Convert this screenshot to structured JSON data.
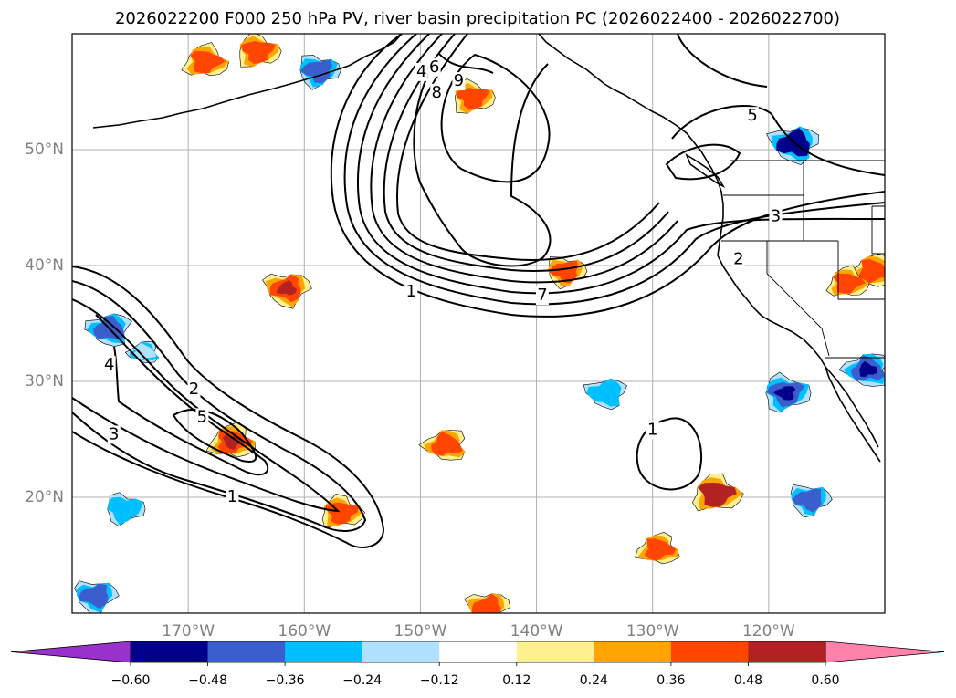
{
  "chart_data": {
    "type": "map",
    "title": "2026022200 F000 250 hPa PV, river basin precipitation PC (2026022400 - 2026022700)",
    "projection": "equirectangular",
    "lon_range": [
      -180,
      -110
    ],
    "lat_range": [
      10,
      60
    ],
    "x_ticks": [
      -170,
      -160,
      -150,
      -140,
      -130,
      -120
    ],
    "x_tick_labels": [
      "170°W",
      "160°W",
      "150°W",
      "140°W",
      "130°W",
      "120°W"
    ],
    "y_ticks": [
      20,
      30,
      40,
      50
    ],
    "y_tick_labels": [
      "20°N",
      "30°N",
      "40°N",
      "50°N"
    ],
    "grid": true,
    "colorbar": {
      "levels": [
        -0.6,
        -0.48,
        -0.36,
        -0.24,
        -0.12,
        0.12,
        0.24,
        0.36,
        0.48,
        0.6
      ],
      "labels": [
        "−0.60",
        "−0.48",
        "−0.36",
        "−0.24",
        "−0.12",
        "0.12",
        "0.24",
        "0.36",
        "0.48",
        "0.60"
      ],
      "colors": [
        "#9932cc",
        "#00008b",
        "#3a5fcd",
        "#00bfff",
        "#b0e2ff",
        "#ffffff",
        "#fff08f",
        "#ffa500",
        "#ff4500",
        "#b22222",
        "#ff82ab"
      ],
      "extend": "both"
    },
    "pv_contours": {
      "field": "250 hPa PV",
      "color": "#000000",
      "contour_labels": [
        {
          "value": "1",
          "lon": -150.8,
          "lat": 37.7
        },
        {
          "value": "7",
          "lon": -139.5,
          "lat": 37.4
        },
        {
          "value": "4",
          "lon": -149.9,
          "lat": 56.7
        },
        {
          "value": "6",
          "lon": -148.8,
          "lat": 57.1
        },
        {
          "value": "8",
          "lon": -148.6,
          "lat": 54.9
        },
        {
          "value": "9",
          "lon": -146.7,
          "lat": 55.9
        },
        {
          "value": "5",
          "lon": -121.4,
          "lat": 52.9
        },
        {
          "value": "3",
          "lon": -119.4,
          "lat": 44.2
        },
        {
          "value": "2",
          "lon": -122.6,
          "lat": 40.5
        },
        {
          "value": "1",
          "lon": -130.0,
          "lat": 25.8
        },
        {
          "value": "4",
          "lon": -176.8,
          "lat": 31.4
        },
        {
          "value": "2",
          "lon": -169.5,
          "lat": 29.3
        },
        {
          "value": "5",
          "lon": -168.8,
          "lat": 26.9
        },
        {
          "value": "3",
          "lon": -176.4,
          "lat": 25.4
        },
        {
          "value": "1",
          "lon": -166.2,
          "lat": 20.0
        }
      ]
    },
    "precip_pc_blobs": [
      {
        "lon": -168.5,
        "lat": 57.6,
        "value": 0.42
      },
      {
        "lon": -164.0,
        "lat": 58.5,
        "value": 0.42
      },
      {
        "lon": -158.8,
        "lat": 56.8,
        "value": -0.4
      },
      {
        "lon": -161.5,
        "lat": 38.0,
        "value": 0.45
      },
      {
        "lon": -176.8,
        "lat": 34.5,
        "value": -0.42
      },
      {
        "lon": -173.8,
        "lat": 32.5,
        "value": -0.2
      },
      {
        "lon": -166.2,
        "lat": 24.8,
        "value": 0.45
      },
      {
        "lon": -156.8,
        "lat": 18.7,
        "value": 0.4
      },
      {
        "lon": -175.5,
        "lat": 19.0,
        "value": -0.36
      },
      {
        "lon": -178.0,
        "lat": 11.5,
        "value": -0.4
      },
      {
        "lon": -134.0,
        "lat": 29.0,
        "value": -0.36
      },
      {
        "lon": -147.8,
        "lat": 24.5,
        "value": 0.4
      },
      {
        "lon": -129.5,
        "lat": 15.5,
        "value": 0.38
      },
      {
        "lon": -124.5,
        "lat": 20.3,
        "value": 0.5
      },
      {
        "lon": -118.5,
        "lat": 29.0,
        "value": -0.48
      },
      {
        "lon": -116.5,
        "lat": 19.8,
        "value": -0.38
      },
      {
        "lon": -117.8,
        "lat": 50.5,
        "value": -0.5
      },
      {
        "lon": -111.5,
        "lat": 31.0,
        "value": -0.45
      },
      {
        "lon": -111.0,
        "lat": 39.5,
        "value": 0.42
      },
      {
        "lon": -113.2,
        "lat": 38.5,
        "value": 0.36
      },
      {
        "lon": -145.5,
        "lat": 54.5,
        "value": 0.4
      },
      {
        "lon": -137.5,
        "lat": 39.5,
        "value": 0.36
      },
      {
        "lon": -144.2,
        "lat": 10.5,
        "value": 0.4
      }
    ]
  }
}
